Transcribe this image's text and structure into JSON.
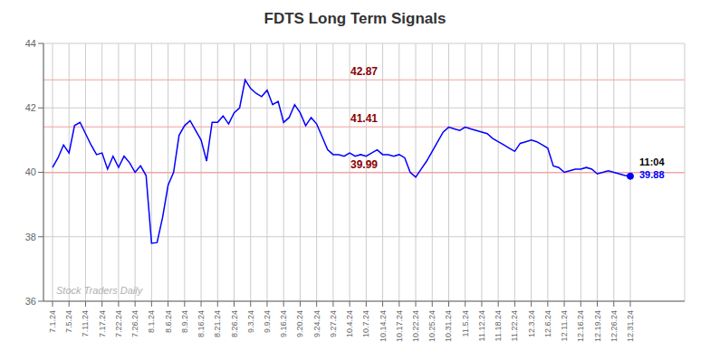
{
  "chart_data": {
    "type": "line",
    "title": "FDTS Long Term Signals",
    "categories": [
      "7.1.24",
      null,
      null,
      "7.5.24",
      null,
      null,
      "7.11.24",
      null,
      null,
      "7.17.24",
      null,
      null,
      "7.22.24",
      null,
      null,
      "7.26.24",
      null,
      null,
      "8.1.24",
      null,
      null,
      "8.6.24",
      null,
      null,
      "8.9.24",
      null,
      null,
      "8.16.24",
      null,
      null,
      "8.21.24",
      null,
      null,
      "8.26.24",
      null,
      null,
      "9.3.24",
      null,
      null,
      "9.9.24",
      null,
      null,
      "9.16.24",
      null,
      null,
      "9.20.24",
      null,
      null,
      "9.24.24",
      null,
      null,
      "9.27.24",
      null,
      null,
      "10.4.24",
      null,
      null,
      "10.7.24",
      null,
      null,
      "10.14.24",
      null,
      null,
      "10.17.24",
      null,
      null,
      "10.22.24",
      null,
      null,
      "10.25.24",
      null,
      null,
      "10.31.24",
      null,
      null,
      "11.5.24",
      null,
      null,
      "11.12.24",
      null,
      null,
      "11.18.24",
      null,
      null,
      "11.22.24",
      null,
      null,
      "12.3.24",
      null,
      null,
      "12.6.24",
      null,
      null,
      "12.11.24",
      null,
      null,
      "12.16.24",
      null,
      null,
      "12.19.24",
      null,
      null,
      "12.26.24",
      null,
      null,
      "12.31.24"
    ],
    "values": [
      40.15,
      40.45,
      40.85,
      40.6,
      41.45,
      41.55,
      41.2,
      40.85,
      40.55,
      40.6,
      40.1,
      40.5,
      40.15,
      40.5,
      40.3,
      40.0,
      40.2,
      39.9,
      37.8,
      37.82,
      38.6,
      39.6,
      40.0,
      41.15,
      41.45,
      41.6,
      41.3,
      41.0,
      40.35,
      41.55,
      41.55,
      41.75,
      41.5,
      41.85,
      42.0,
      42.87,
      42.6,
      42.45,
      42.35,
      42.55,
      42.1,
      42.2,
      41.55,
      41.7,
      42.1,
      41.85,
      41.45,
      41.7,
      41.5,
      41.1,
      40.7,
      40.55,
      40.55,
      40.5,
      40.6,
      40.5,
      40.55,
      40.5,
      40.6,
      40.7,
      40.55,
      40.55,
      40.5,
      40.55,
      40.45,
      40.0,
      39.85,
      40.1,
      40.35,
      40.65,
      40.95,
      41.25,
      41.4,
      41.35,
      41.3,
      41.4,
      41.35,
      41.3,
      41.25,
      41.2,
      41.05,
      40.95,
      40.85,
      40.75,
      40.65,
      40.9,
      40.95,
      41.0,
      40.95,
      40.85,
      40.75,
      40.2,
      40.15,
      40.0,
      40.05,
      40.1,
      40.1,
      40.15,
      40.1,
      39.95,
      40.0,
      40.05,
      40.0,
      39.95,
      39.9,
      39.88
    ],
    "color": "blue",
    "ylim": [
      36,
      44
    ],
    "yticks": [
      36,
      38,
      40,
      42,
      44
    ],
    "grid": true,
    "reference_lines": [
      {
        "value": 39.99,
        "label": "39.99",
        "color": "#f5a0a0"
      },
      {
        "value": 41.41,
        "label": "41.41",
        "color": "#f5a0a0"
      },
      {
        "value": 42.87,
        "label": "42.87",
        "color": "#f5a0a0"
      }
    ],
    "annotations": [
      {
        "text": "11:04",
        "color": "black"
      },
      {
        "text": "39.88",
        "color": "blue"
      }
    ],
    "watermark": "Stock Traders Daily"
  }
}
